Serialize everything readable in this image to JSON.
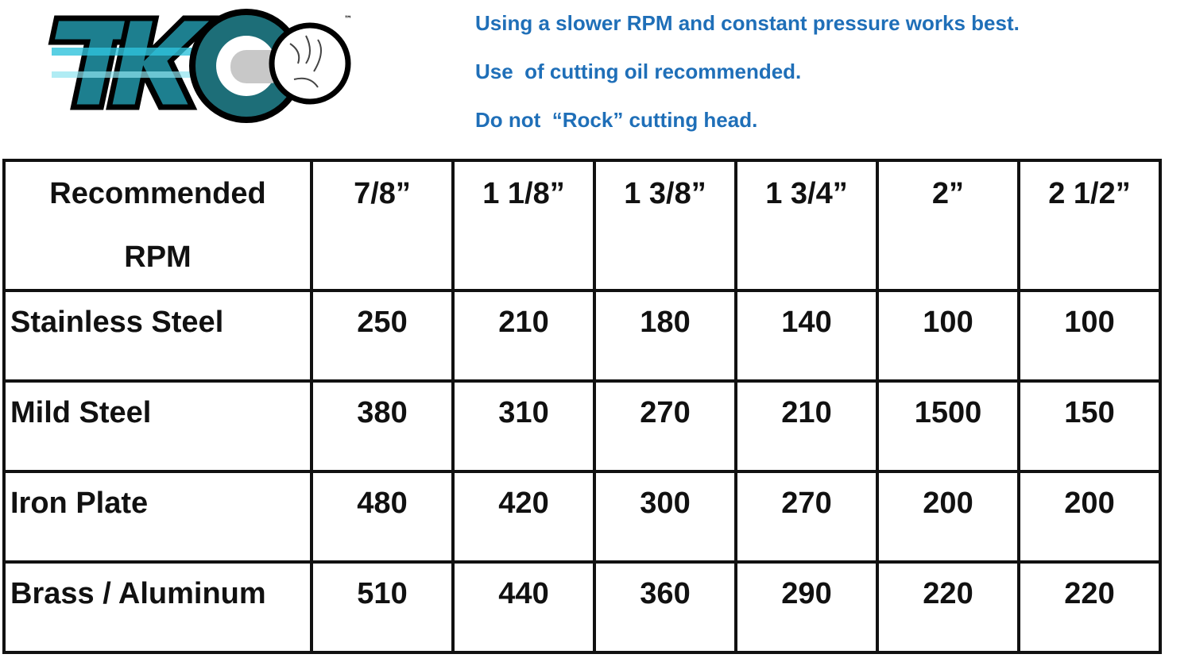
{
  "logo": {
    "text": "TKO",
    "trademark": "™",
    "colors": {
      "teal": "#1d7f8f",
      "cyan": "#2fc3dc",
      "outline": "#000000"
    }
  },
  "notes": [
    "Using a slower RPM and constant pressure works best.",
    "Use  of cutting oil recommended.",
    "Do not  “Rock” cutting head."
  ],
  "notes_color": "#1f6fb8",
  "table": {
    "header_label": [
      "Recommended",
      "RPM"
    ],
    "columns": [
      "7/8”",
      "1 1/8”",
      "1 3/8”",
      "1 3/4”",
      "2”",
      "2 1/2”"
    ],
    "rows": [
      {
        "material": "Stainless Steel",
        "values": [
          "250",
          "210",
          "180",
          "140",
          "100",
          "100"
        ]
      },
      {
        "material": "Mild Steel",
        "values": [
          "380",
          "310",
          "270",
          "210",
          "1500",
          "150"
        ]
      },
      {
        "material": "Iron Plate",
        "values": [
          "480",
          "420",
          "300",
          "270",
          "200",
          "200"
        ]
      },
      {
        "material": "Brass / Aluminum",
        "values": [
          "510",
          "440",
          "360",
          "290",
          "220",
          "220"
        ]
      }
    ]
  }
}
